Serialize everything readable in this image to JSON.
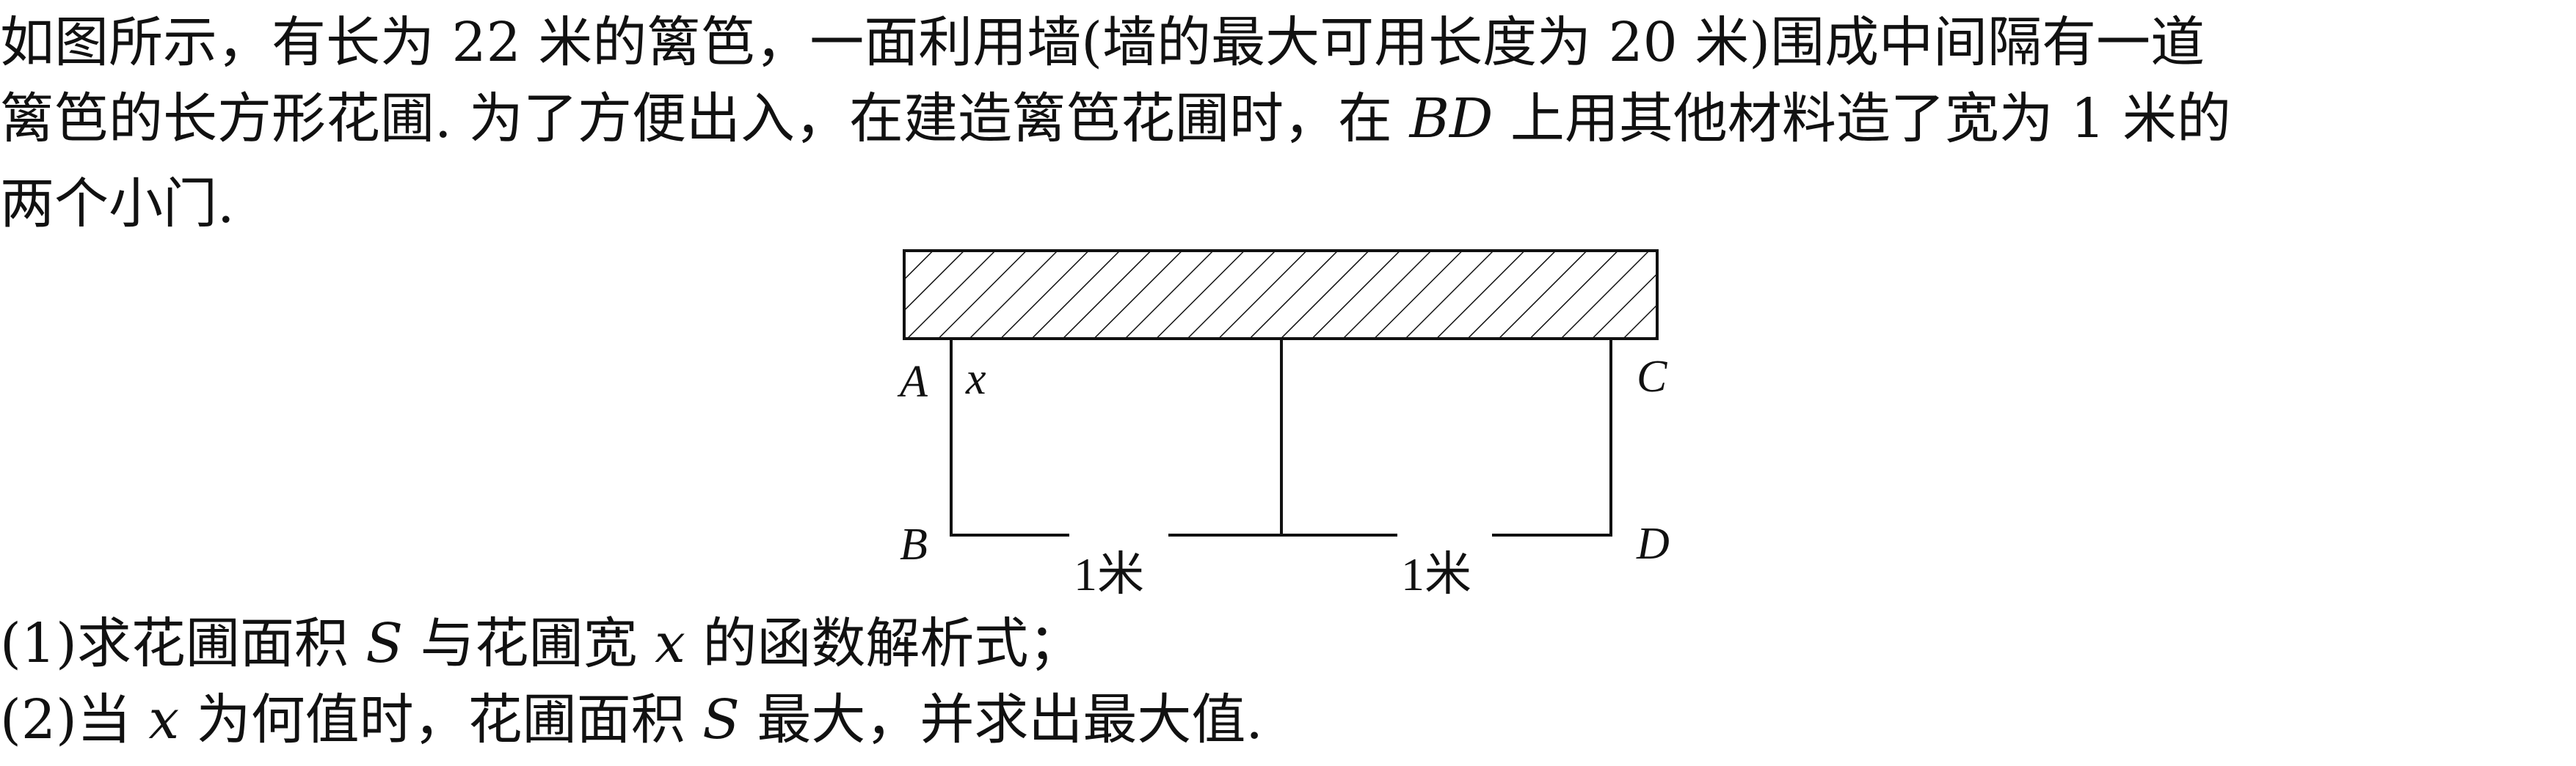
{
  "problem": {
    "line1": "如图所示，有长为 22 米的篱笆，一面利用墙(墙的最大可用长度为 20 米)围成中间隔有一道",
    "line2_a": "篱笆的长方形花圃. 为了方便出入，在建造篱笆花圃时，在 ",
    "line2_var": "BD",
    "line2_b": " 上用其他材料造了宽为 1 米的",
    "line3": "两个小门."
  },
  "diagram": {
    "label_A": "A",
    "label_B": "B",
    "label_C": "C",
    "label_D": "D",
    "label_x": "x",
    "gate_left": "1米",
    "gate_right": "1米"
  },
  "questions": {
    "q1_a": "(1)求花圃面积 ",
    "q1_S": "S",
    "q1_b": " 与花圃宽 ",
    "q1_x": "x",
    "q1_c": " 的函数解析式；",
    "q2_a": "(2)当 ",
    "q2_x": "x",
    "q2_b": " 为何值时，花圃面积 ",
    "q2_S": "S",
    "q2_c": " 最大，并求出最大值."
  }
}
